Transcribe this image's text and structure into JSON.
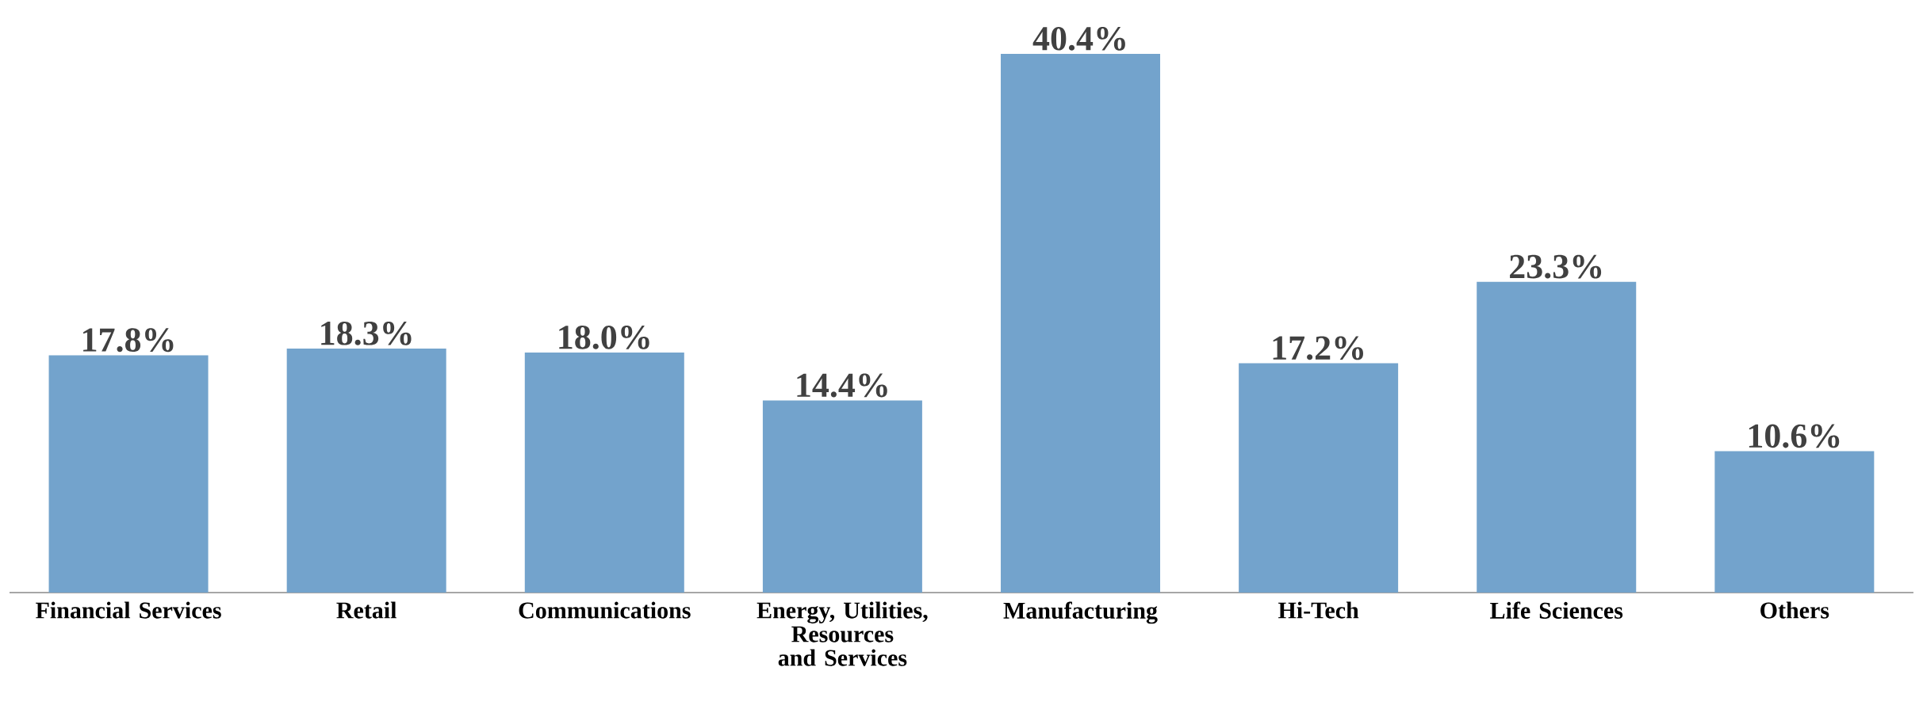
{
  "chart_data": {
    "type": "bar",
    "categories": [
      "Financial Services",
      "Retail",
      "Communications",
      "Energy, Utilities, Resources and Services",
      "Manufacturing",
      "Hi-Tech",
      "Life Sciences",
      "Others"
    ],
    "values": [
      17.8,
      18.3,
      18.0,
      14.4,
      40.4,
      17.2,
      23.3,
      10.6
    ],
    "value_labels": [
      "17.8%",
      "18.3%",
      "18.0%",
      "14.4%",
      "40.4%",
      "17.2%",
      "23.3%",
      "10.6%"
    ],
    "color": "#73a3cc"
  }
}
